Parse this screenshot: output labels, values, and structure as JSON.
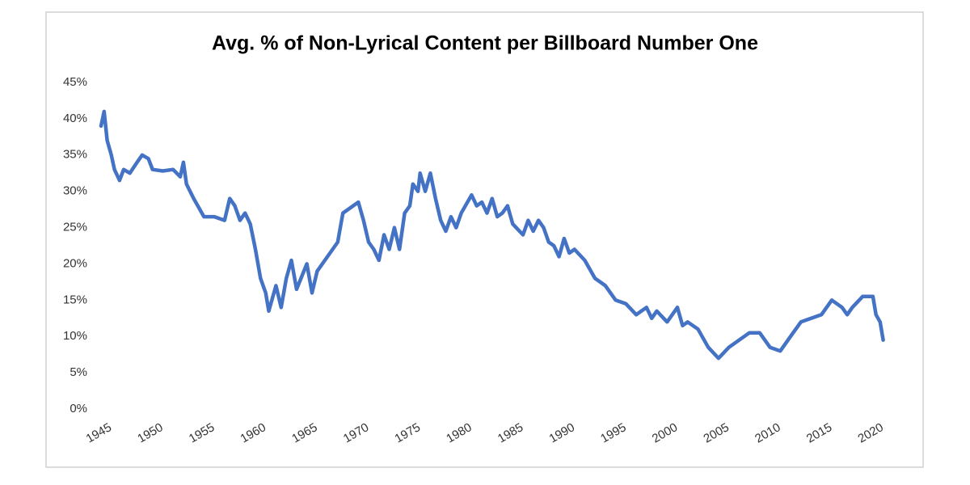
{
  "chart_data": {
    "type": "line",
    "title": "Avg. % of Non-Lyrical Content per Billboard Number One",
    "x": [
      1945.0,
      1945.3,
      1945.6,
      1946,
      1946.3,
      1946.8,
      1947.2,
      1947.8,
      1948.5,
      1949,
      1949.6,
      1950,
      1951,
      1952,
      1952.7,
      1953,
      1953.3,
      1954,
      1955,
      1956,
      1957,
      1957.5,
      1958,
      1958.5,
      1959,
      1959.5,
      1960,
      1960.5,
      1961,
      1961.3,
      1962,
      1962.5,
      1963,
      1963.5,
      1964,
      1965,
      1965.5,
      1966,
      1967,
      1968,
      1968.5,
      1969,
      1970,
      1970.5,
      1971,
      1971.5,
      1972,
      1972.5,
      1973,
      1973.5,
      1974,
      1974.5,
      1975,
      1975.3,
      1975.8,
      1976,
      1976.5,
      1977,
      1977.5,
      1978,
      1978.5,
      1979,
      1979.5,
      1980,
      1981,
      1981.5,
      1982,
      1982.5,
      1983,
      1983.5,
      1984,
      1984.5,
      1985,
      1986,
      1986.5,
      1987,
      1987.5,
      1988,
      1988.5,
      1989,
      1989.5,
      1990,
      1990.5,
      1991,
      1992,
      1993,
      1994,
      1995,
      1996,
      1997,
      1998,
      1998.5,
      1999,
      2000,
      2001,
      2001.5,
      2002,
      2003,
      2004,
      2005,
      2006,
      2007,
      2008,
      2009,
      2010,
      2011,
      2012,
      2013,
      2014,
      2015,
      2016,
      2017,
      2017.5,
      2018,
      2019,
      2020,
      2020.3,
      2020.7,
      2021
    ],
    "series": [
      {
        "color": "#4472c4",
        "values": [
          39,
          41,
          37,
          35,
          33,
          31.5,
          33,
          32.5,
          34,
          35,
          34.5,
          33,
          32.8,
          33,
          32,
          34,
          31,
          29,
          26.5,
          26.5,
          26,
          29,
          28,
          26,
          27,
          25.5,
          22,
          18,
          16,
          13.5,
          17,
          14,
          18,
          20.5,
          16.5,
          20,
          16,
          19,
          21,
          23,
          27,
          27.5,
          28.5,
          26,
          23,
          22,
          20.5,
          24,
          22,
          25,
          22,
          27,
          28,
          31,
          30,
          32.5,
          30,
          32.5,
          29,
          26,
          24.5,
          26.5,
          25,
          27,
          29.5,
          28,
          28.5,
          27,
          29,
          26.5,
          27,
          28,
          25.5,
          24,
          26,
          24.5,
          26,
          25,
          23,
          22.5,
          21,
          23.5,
          21.5,
          22,
          20.5,
          18,
          17,
          15,
          14.5,
          13,
          14,
          12.5,
          13.5,
          12,
          14,
          11.5,
          12,
          11,
          8.5,
          7,
          8.5,
          9.5,
          10.5,
          10.5,
          8.5,
          8,
          10,
          12,
          12.5,
          13,
          15,
          14,
          13,
          14,
          15.5,
          15.5,
          13,
          12,
          9.5
        ]
      }
    ],
    "xlim": [
      1945,
      2021.5
    ],
    "xticks": [
      1945,
      1950,
      1955,
      1960,
      1965,
      1970,
      1975,
      1980,
      1985,
      1990,
      1995,
      2000,
      2005,
      2010,
      2015,
      2020
    ],
    "ylim": [
      0,
      45
    ],
    "yticks": [
      {
        "value": 0,
        "label": "0%"
      },
      {
        "value": 5,
        "label": "5%"
      },
      {
        "value": 10,
        "label": "10%"
      },
      {
        "value": 15,
        "label": "15%"
      },
      {
        "value": 20,
        "label": "20%"
      },
      {
        "value": 25,
        "label": "25%"
      },
      {
        "value": 30,
        "label": "30%"
      },
      {
        "value": 35,
        "label": "35%"
      },
      {
        "value": 40,
        "label": "40%"
      },
      {
        "value": 45,
        "label": "45%"
      }
    ],
    "grid": false
  }
}
